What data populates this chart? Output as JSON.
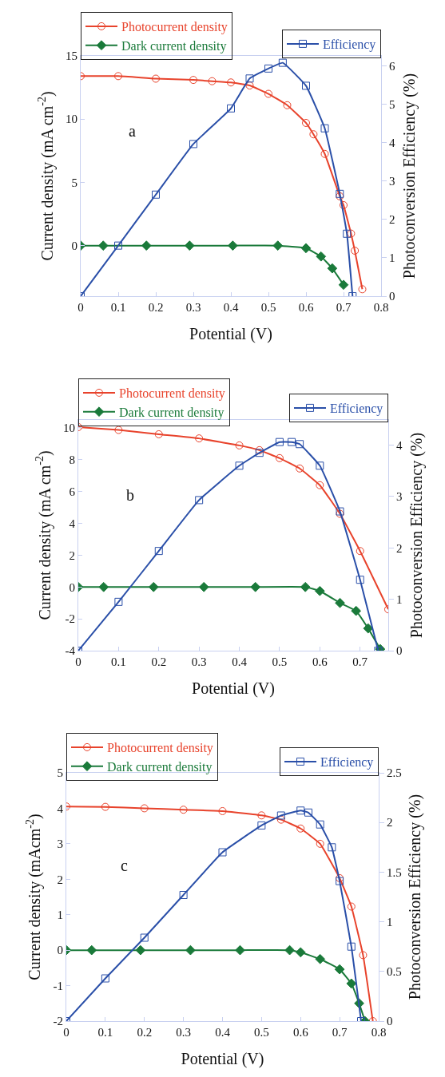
{
  "chart_data": [
    {
      "type": "line",
      "xlabel": "Potential (V)",
      "ylabel": "Current density (mA cm$^{-2}$)",
      "y2label": "Photoconversion Efficiency (%)",
      "annotations": [
        "a"
      ],
      "legend": "top",
      "xlim": [
        0,
        0.8
      ],
      "xticks": [
        0,
        0.1,
        0.2,
        0.3,
        0.4,
        0.5,
        0.6,
        0.7,
        0.8
      ],
      "ylim": [
        -4,
        15
      ],
      "yticks": [
        0,
        5,
        10,
        15
      ],
      "y2lim": [
        0,
        6.27
      ],
      "y2ticks": [
        0,
        1,
        2,
        3,
        4,
        5,
        6
      ],
      "series": [
        {
          "name": "Photocurrent density",
          "color": "#e8432c",
          "marker": "circle",
          "x": [
            0,
            0.1,
            0.2,
            0.3,
            0.35,
            0.4,
            0.45,
            0.5,
            0.55,
            0.6,
            0.62,
            0.65,
            0.69,
            0.7,
            0.72,
            0.73,
            0.75
          ],
          "values": [
            13.4,
            13.4,
            13.2,
            13.1,
            13.0,
            12.9,
            12.66,
            12.0,
            11.1,
            9.7,
            8.8,
            7.25,
            3.9,
            3.2,
            0.95,
            -0.4,
            -3.45
          ]
        },
        {
          "name": "Dark current density",
          "color": "#1a7a3a",
          "marker": "diamond",
          "x": [
            0,
            0.06,
            0.175,
            0.29,
            0.405,
            0.525,
            0.6,
            0.64,
            0.67,
            0.7
          ],
          "values": [
            0,
            0,
            0,
            0,
            0,
            0,
            -0.2,
            -0.86,
            -1.8,
            -3.1
          ]
        },
        {
          "name": "Efficiency",
          "color": "#2a4fa8",
          "marker": "square",
          "axis": "y2",
          "x": [
            0,
            0.1,
            0.2,
            0.3,
            0.4,
            0.45,
            0.5,
            0.538,
            0.6,
            0.65,
            0.69,
            0.709,
            0.724
          ],
          "values": [
            0,
            1.32,
            2.65,
            3.97,
            4.9,
            5.68,
            5.94,
            6.09,
            5.49,
            4.38,
            2.67,
            1.63,
            0
          ]
        }
      ]
    },
    {
      "type": "line",
      "xlabel": "Potential (V)",
      "ylabel": "Current density (mA cm$^{-2}$)",
      "y2label": "Photoconversion Efficiency (%)",
      "annotations": [
        "b"
      ],
      "legend": "top",
      "xlim": [
        0,
        0.77
      ],
      "xticks": [
        0,
        0.1,
        0.2,
        0.3,
        0.4,
        0.5,
        0.6,
        0.7
      ],
      "ylim": [
        -4,
        10.5
      ],
      "yticks": [
        -4,
        -2,
        0,
        2,
        4,
        6,
        8,
        10
      ],
      "y2lim": [
        0,
        4.49
      ],
      "y2ticks": [
        0,
        1,
        2,
        3,
        4
      ],
      "series": [
        {
          "name": "Photocurrent density",
          "color": "#e8432c",
          "marker": "circle",
          "x": [
            0,
            0.1,
            0.2,
            0.3,
            0.4,
            0.45,
            0.5,
            0.55,
            0.6,
            0.65,
            0.7,
            0.77
          ],
          "values": [
            10.05,
            9.87,
            9.6,
            9.34,
            8.9,
            8.6,
            8.1,
            7.45,
            6.4,
            4.6,
            2.26,
            -1.4
          ]
        },
        {
          "name": "Dark current density",
          "color": "#1a7a3a",
          "marker": "diamond",
          "x": [
            0,
            0.063,
            0.187,
            0.312,
            0.44,
            0.564,
            0.6,
            0.65,
            0.69,
            0.72,
            0.75
          ],
          "values": [
            0,
            0,
            0,
            0,
            0,
            0,
            -0.25,
            -1.0,
            -1.5,
            -2.6,
            -3.9
          ]
        },
        {
          "name": "Efficiency",
          "color": "#2a4fa8",
          "marker": "square",
          "axis": "y2",
          "x": [
            0,
            0.1,
            0.2,
            0.3,
            0.4,
            0.45,
            0.5,
            0.53,
            0.55,
            0.6,
            0.65,
            0.7,
            0.745
          ],
          "values": [
            0,
            0.95,
            1.94,
            2.93,
            3.6,
            3.85,
            4.06,
            4.06,
            4.02,
            3.6,
            2.71,
            1.38,
            0
          ]
        }
      ]
    },
    {
      "type": "line",
      "xlabel": "Potential (V)",
      "ylabel": "Current density (mAcm$^{-2}$)",
      "y2label": "Photoconversion Efficiency (%)",
      "annotations": [
        "c"
      ],
      "legend": "top",
      "xlim": [
        0,
        0.8
      ],
      "xticks": [
        0,
        0.1,
        0.2,
        0.3,
        0.4,
        0.5,
        0.6,
        0.7,
        0.8
      ],
      "ylim": [
        -2,
        5
      ],
      "yticks": [
        -2,
        -1,
        0,
        1,
        2,
        3,
        4,
        5
      ],
      "y2lim": [
        0,
        2.5
      ],
      "y2ticks": [
        0,
        0.5,
        1,
        1.5,
        2,
        2.5
      ],
      "series": [
        {
          "name": "Photocurrent density",
          "color": "#e8432c",
          "marker": "circle",
          "x": [
            0,
            0.1,
            0.2,
            0.3,
            0.4,
            0.5,
            0.55,
            0.6,
            0.65,
            0.7,
            0.73,
            0.76,
            0.785
          ],
          "values": [
            4.05,
            4.04,
            4.0,
            3.96,
            3.92,
            3.8,
            3.68,
            3.43,
            3.0,
            2.03,
            1.23,
            -0.14,
            -2.0
          ]
        },
        {
          "name": "Dark current density",
          "color": "#1a7a3a",
          "marker": "diamond",
          "x": [
            0,
            0.065,
            0.19,
            0.318,
            0.445,
            0.572,
            0.6,
            0.65,
            0.7,
            0.73,
            0.75,
            0.765
          ],
          "values": [
            0,
            0,
            0,
            0,
            0,
            0,
            -0.06,
            -0.25,
            -0.54,
            -0.94,
            -1.5,
            -2.0
          ]
        },
        {
          "name": "Efficiency",
          "color": "#2a4fa8",
          "marker": "square",
          "axis": "y2",
          "x": [
            0,
            0.1,
            0.2,
            0.3,
            0.4,
            0.5,
            0.55,
            0.6,
            0.62,
            0.65,
            0.68,
            0.7,
            0.73,
            0.755
          ],
          "values": [
            0,
            0.43,
            0.84,
            1.27,
            1.7,
            1.97,
            2.07,
            2.12,
            2.1,
            1.98,
            1.75,
            1.41,
            0.75,
            0
          ]
        }
      ]
    }
  ]
}
